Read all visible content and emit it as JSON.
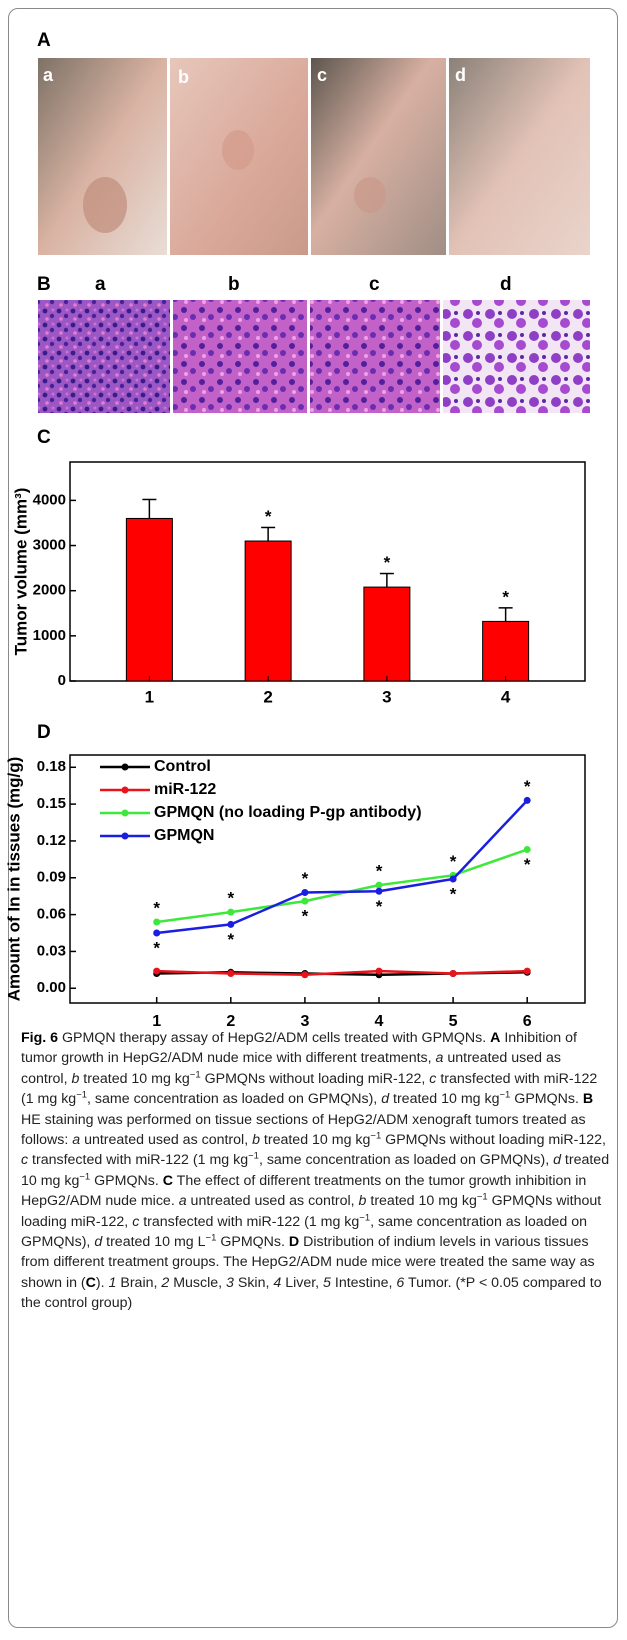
{
  "figure": {
    "panels": {
      "A": {
        "label": "A",
        "sublabels": [
          "a",
          "b",
          "c",
          "d"
        ]
      },
      "B": {
        "label": "B",
        "sublabels": [
          "a",
          "b",
          "c",
          "d"
        ]
      },
      "C": {
        "label": "C"
      },
      "D": {
        "label": "D"
      }
    },
    "caption": [
      {
        "text": "Fig. 6",
        "style": "bold"
      },
      {
        "text": " GPMQN therapy assay of HepG2/ADM cells treated with GPMQNs. "
      },
      {
        "text": "A",
        "style": "bold"
      },
      {
        "text": " Inhibition of tumor growth in HepG2/ADM nude mice with different treatments, "
      },
      {
        "text": "a",
        "style": "italic"
      },
      {
        "text": " untreated used as control, "
      },
      {
        "text": "b",
        "style": "italic"
      },
      {
        "text": " treated 10 mg kg"
      },
      {
        "text": "−1",
        "style": "sup"
      },
      {
        "text": " GPMQNs without loading miR-122, "
      },
      {
        "text": "c",
        "style": "italic"
      },
      {
        "text": " transfected with miR-122 (1 mg kg"
      },
      {
        "text": "−1",
        "style": "sup"
      },
      {
        "text": ", same concentration as loaded on GPMQNs), "
      },
      {
        "text": "d",
        "style": "italic"
      },
      {
        "text": " treated 10 mg kg"
      },
      {
        "text": "−1",
        "style": "sup"
      },
      {
        "text": " GPMQNs. "
      },
      {
        "text": "B",
        "style": "bold"
      },
      {
        "text": " HE staining was performed on tissue sections of HepG2/ADM xenograft tumors treated as follows: "
      },
      {
        "text": "a",
        "style": "italic"
      },
      {
        "text": " untreated used as control, "
      },
      {
        "text": "b",
        "style": "italic"
      },
      {
        "text": " treated 10 mg kg"
      },
      {
        "text": "−1",
        "style": "sup"
      },
      {
        "text": " GPMQNs without loading miR-122, "
      },
      {
        "text": "c",
        "style": "italic"
      },
      {
        "text": " transfected with miR-122 (1 mg kg"
      },
      {
        "text": "−1",
        "style": "sup"
      },
      {
        "text": ", same concentration as loaded on GPMQNs), "
      },
      {
        "text": "d",
        "style": "italic"
      },
      {
        "text": " treated 10 mg kg"
      },
      {
        "text": "−1",
        "style": "sup"
      },
      {
        "text": " GPMQNs. "
      },
      {
        "text": "C",
        "style": "bold"
      },
      {
        "text": " The effect of different treatments on the tumor growth inhibition in HepG2/ADM nude mice. "
      },
      {
        "text": "a",
        "style": "italic"
      },
      {
        "text": " untreated used as control, "
      },
      {
        "text": "b",
        "style": "italic"
      },
      {
        "text": " treated 10 mg kg"
      },
      {
        "text": "−1",
        "style": "sup"
      },
      {
        "text": " GPMQNs without loading miR-122, "
      },
      {
        "text": "c",
        "style": "italic"
      },
      {
        "text": " transfected with miR-122 (1 mg kg"
      },
      {
        "text": "−1",
        "style": "sup"
      },
      {
        "text": ", same concentration as loaded on GPMQNs), "
      },
      {
        "text": "d",
        "style": "italic"
      },
      {
        "text": " treated 10 mg L"
      },
      {
        "text": "−1",
        "style": "sup"
      },
      {
        "text": " GPMQNs. "
      },
      {
        "text": "D",
        "style": "bold"
      },
      {
        "text": " Distribution of indium levels in various tissues from different treatment groups. The HepG2/ADM nude mice were treated the same way as shown in ("
      },
      {
        "text": "C",
        "style": "bold"
      },
      {
        "text": "). "
      },
      {
        "text": "1",
        "style": "italic"
      },
      {
        "text": " Brain, "
      },
      {
        "text": "2",
        "style": "italic"
      },
      {
        "text": " Muscle, "
      },
      {
        "text": "3",
        "style": "italic"
      },
      {
        "text": " Skin, "
      },
      {
        "text": "4",
        "style": "italic"
      },
      {
        "text": " Liver, "
      },
      {
        "text": "5",
        "style": "italic"
      },
      {
        "text": " Intestine, "
      },
      {
        "text": "6",
        "style": "italic"
      },
      {
        "text": " Tumor. (*P < 0.05 compared to the control group)"
      }
    ]
  },
  "chart_data": [
    {
      "type": "bar",
      "y_label": "Tumor volume (mm³)",
      "categories": [
        "1",
        "2",
        "3",
        "4"
      ],
      "values": [
        3600,
        3100,
        2080,
        1320
      ],
      "errors": [
        420,
        300,
        300,
        300
      ],
      "annotations": [
        null,
        "*",
        "*",
        "*"
      ],
      "color": "#ff0000",
      "ylim": [
        0,
        4850
      ],
      "yticks": [
        0,
        1000,
        2000,
        3000,
        4000
      ]
    },
    {
      "type": "line",
      "y_label": "Amount of In in tissues (mg/g)",
      "x": [
        1,
        2,
        3,
        4,
        5,
        6
      ],
      "xlim": [
        -0.17,
        6.78
      ],
      "xticks": [
        1,
        2,
        3,
        4,
        5,
        6
      ],
      "ylim": [
        -0.012,
        0.19
      ],
      "yticks": [
        {
          "value": 0,
          "label": "0.00"
        },
        0.03,
        0.06,
        0.09,
        0.12,
        0.15,
        0.18
      ],
      "legend": "upper-left",
      "series": [
        {
          "name": "Control",
          "color": "#000000",
          "values": [
            0.012,
            0.013,
            0.012,
            0.011,
            0.012,
            0.013
          ]
        },
        {
          "name": "miR-122",
          "color": "#e8141c",
          "values": [
            0.014,
            0.012,
            0.011,
            0.014,
            0.012,
            0.014
          ]
        },
        {
          "name": "GPMQN (no loading P-gp antibody)",
          "color": "#3de83a",
          "values": [
            0.054,
            0.062,
            0.071,
            0.084,
            0.092,
            0.113
          ],
          "annotations": [
            "*",
            "*",
            "*",
            "*",
            "*",
            "*"
          ]
        },
        {
          "name": "GPMQN",
          "color": "#1a1ee0",
          "values": [
            0.045,
            0.052,
            0.078,
            0.079,
            0.089,
            0.153
          ],
          "annotations": [
            "*",
            "*",
            "*",
            "*",
            "*",
            "*"
          ]
        }
      ]
    }
  ]
}
